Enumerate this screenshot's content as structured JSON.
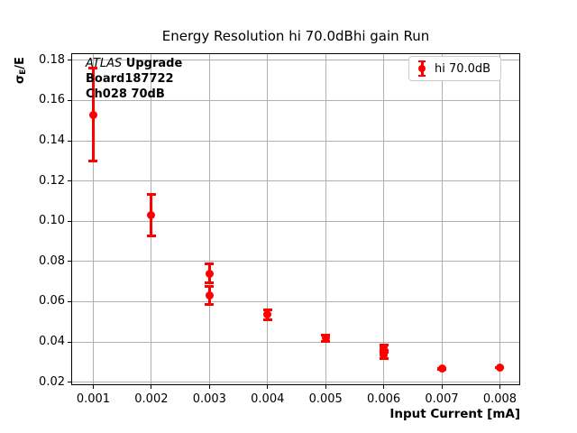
{
  "chart_data": {
    "type": "scatter",
    "title": "Energy Resolution hi 70.0dBhi gain Run",
    "xlabel": "Input Current [mA]",
    "ylabel": "σE/E",
    "ylabel_parts": {
      "sigma": "σ",
      "sub": "E",
      "rest": "/E"
    },
    "xlim": [
      0.00062,
      0.00835
    ],
    "ylim": [
      0.0185,
      0.1835
    ],
    "grid": true,
    "legend_position": "upper right",
    "colors": {
      "series": "#ff0000",
      "grid": "#b0b0b0",
      "spine": "#000000",
      "background": "#ffffff",
      "legend_border": "#cccccc"
    },
    "xticks": [
      {
        "value": 0.001,
        "label": "0.001"
      },
      {
        "value": 0.002,
        "label": "0.002"
      },
      {
        "value": 0.003,
        "label": "0.003"
      },
      {
        "value": 0.004,
        "label": "0.004"
      },
      {
        "value": 0.005,
        "label": "0.005"
      },
      {
        "value": 0.006,
        "label": "0.006"
      },
      {
        "value": 0.007,
        "label": "0.007"
      },
      {
        "value": 0.008,
        "label": "0.008"
      }
    ],
    "yticks": [
      {
        "value": 0.02,
        "label": "0.02"
      },
      {
        "value": 0.04,
        "label": "0.04"
      },
      {
        "value": 0.06,
        "label": "0.06"
      },
      {
        "value": 0.08,
        "label": "0.08"
      },
      {
        "value": 0.1,
        "label": "0.10"
      },
      {
        "value": 0.12,
        "label": "0.12"
      },
      {
        "value": 0.14,
        "label": "0.14"
      },
      {
        "value": 0.16,
        "label": "0.16"
      },
      {
        "value": 0.18,
        "label": "0.18"
      }
    ],
    "series": [
      {
        "name": "hi 70.0dB",
        "color": "#ff0000",
        "marker": "circle-with-errorbars",
        "points": [
          {
            "x": 0.001,
            "y": 0.153,
            "yerr": 0.0235
          },
          {
            "x": 0.002,
            "y": 0.103,
            "yerr": 0.0105
          },
          {
            "x": 0.003,
            "y": 0.074,
            "yerr": 0.005
          },
          {
            "x": 0.003,
            "y": 0.063,
            "yerr": 0.0046
          },
          {
            "x": 0.004,
            "y": 0.0535,
            "yerr": 0.0028
          },
          {
            "x": 0.005,
            "y": 0.042,
            "yerr": 0.0018
          },
          {
            "x": 0.006,
            "y": 0.037,
            "yerr": 0.0016
          },
          {
            "x": 0.006,
            "y": 0.0333,
            "yerr": 0.0018
          },
          {
            "x": 0.007,
            "y": 0.0267,
            "yerr": 0.0004
          },
          {
            "x": 0.008,
            "y": 0.0272,
            "yerr": 0.0004
          }
        ]
      }
    ],
    "annotation": {
      "line1_italic": "ATLAS",
      "line1_bold": " Upgrade",
      "line2": "Board187722",
      "line3": "Ch028 70dB"
    },
    "legend": {
      "label": "hi 70.0dB"
    }
  }
}
